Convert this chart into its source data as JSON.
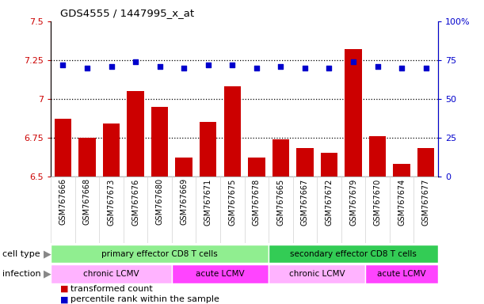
{
  "title": "GDS4555 / 1447995_x_at",
  "samples": [
    "GSM767666",
    "GSM767668",
    "GSM767673",
    "GSM767676",
    "GSM767680",
    "GSM767669",
    "GSM767671",
    "GSM767675",
    "GSM767678",
    "GSM767665",
    "GSM767667",
    "GSM767672",
    "GSM767679",
    "GSM767670",
    "GSM767674",
    "GSM767677"
  ],
  "transformed_count": [
    6.87,
    6.75,
    6.84,
    7.05,
    6.95,
    6.62,
    6.85,
    7.08,
    6.62,
    6.74,
    6.68,
    6.65,
    7.32,
    6.76,
    6.58,
    6.68
  ],
  "percentile_rank": [
    72,
    70,
    71,
    74,
    71,
    70,
    72,
    72,
    70,
    71,
    70,
    70,
    74,
    71,
    70,
    70
  ],
  "bar_color": "#cc0000",
  "dot_color": "#0000cc",
  "ylim_left": [
    6.5,
    7.5
  ],
  "ylim_right": [
    0,
    100
  ],
  "yticks_left": [
    6.5,
    6.75,
    7.0,
    7.25,
    7.5
  ],
  "ytick_labels_left": [
    "6.5",
    "6.75",
    "7",
    "7.25",
    "7.5"
  ],
  "yticks_right": [
    0,
    25,
    50,
    75,
    100
  ],
  "ytick_labels_right": [
    "0",
    "25",
    "50",
    "75",
    "100%"
  ],
  "hlines": [
    6.75,
    7.0,
    7.25
  ],
  "cell_type_groups": [
    {
      "label": "primary effector CD8 T cells",
      "start": 0,
      "end": 8,
      "color": "#90EE90"
    },
    {
      "label": "secondary effector CD8 T cells",
      "start": 9,
      "end": 15,
      "color": "#33CC55"
    }
  ],
  "infection_groups": [
    {
      "label": "chronic LCMV",
      "start": 0,
      "end": 4,
      "color": "#FFB3FF"
    },
    {
      "label": "acute LCMV",
      "start": 5,
      "end": 8,
      "color": "#FF44FF"
    },
    {
      "label": "chronic LCMV",
      "start": 9,
      "end": 12,
      "color": "#FFB3FF"
    },
    {
      "label": "acute LCMV",
      "start": 13,
      "end": 15,
      "color": "#FF44FF"
    }
  ],
  "legend_items": [
    {
      "label": "transformed count",
      "color": "#cc0000",
      "marker": "s"
    },
    {
      "label": "percentile rank within the sample",
      "color": "#0000cc",
      "marker": "s"
    }
  ],
  "bg_color": "#d8d8d8",
  "arrow_color": "#888888"
}
